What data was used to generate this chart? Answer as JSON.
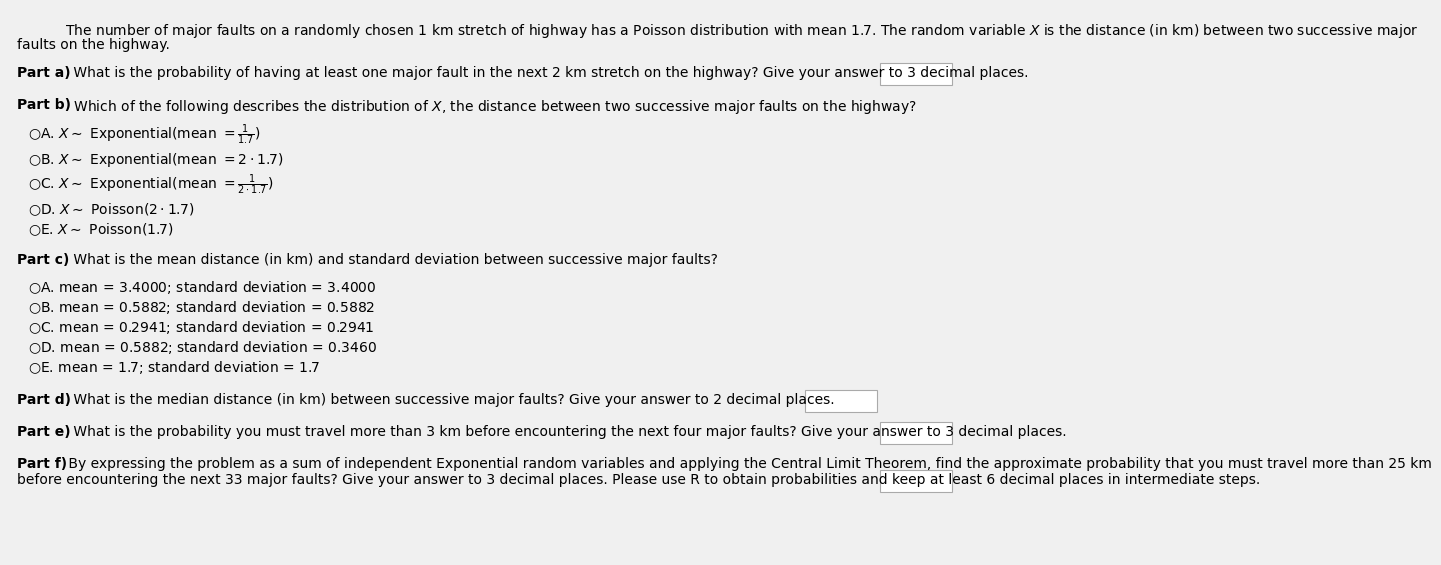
{
  "bg_color": "#f0f0f0",
  "text_color": "#000000",
  "fs": 10.0,
  "intro": "The number of major faults on a randomly chosen 1 km stretch of highway has a Poisson distribution with mean 1.7. The random variable $\\mathit{X}$ is the distance (in km) between two successive major faults on the highway.",
  "part_a_q": "What is the probability of having at least one major fault in the next 2 km stretch on the highway? Give your answer to 3 decimal places.",
  "part_b_q": "Which of the following describes the distribution of $\\mathit{X}$, the distance between two successive major faults on the highway?",
  "part_b_opts": [
    "$\\bigcirc$A. $X\\sim$ Exponential(mean $=\\dfrac{1}{1.7}$)",
    "$\\bigcirc$B. $X\\sim$ Exponential(mean $= 2\\cdot 1.7$)",
    "$\\bigcirc$C. $X\\sim$ Exponential(mean $=\\dfrac{1}{2\\cdot1.7}$)",
    "$\\bigcirc$D. $X\\sim$ Poisson$(2\\cdot 1.7)$",
    "$\\bigcirc$E. $X\\sim$ Poisson$(1.7)$"
  ],
  "part_c_q": "What is the mean distance (in km) and standard deviation between successive major faults?",
  "part_c_opts": [
    "$\\bigcirc$A. mean = 3.4000; standard deviation = 3.4000",
    "$\\bigcirc$B. mean = 0.5882; standard deviation = 0.5882",
    "$\\bigcirc$C. mean = 0.2941; standard deviation = 0.2941",
    "$\\bigcirc$D. mean = 0.5882; standard deviation = 0.3460",
    "$\\bigcirc$E. mean = 1.7; standard deviation = 1.7"
  ],
  "part_d_q": "What is the median distance (in km) between successive major faults? Give your answer to 2 decimal places.",
  "part_e_q": "What is the probability you must travel more than 3 km before encountering the next four major faults? Give your answer to 3 decimal places.",
  "part_f_q": "By expressing the problem as a sum of independent Exponential random variables and applying the Central Limit Theorem, find the approximate probability that you must travel more than 25 km before encountering the next 33 major faults? Give your answer to 3 decimal places. Please use R to obtain probabilities and keep at least 6 decimal places in intermediate steps."
}
